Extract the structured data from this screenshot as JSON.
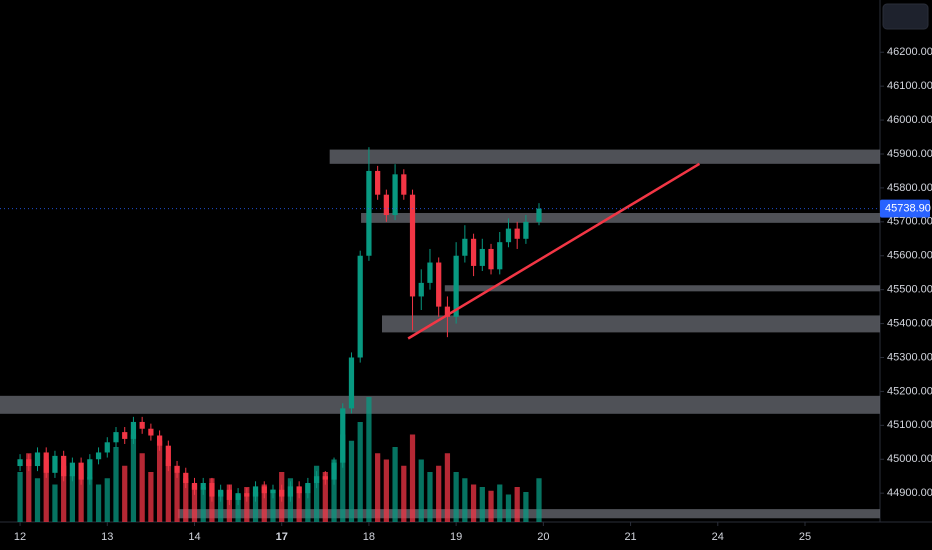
{
  "chart_data": {
    "type": "candlestick",
    "x": [
      0.0,
      0.1,
      0.2,
      0.3,
      0.4,
      0.5,
      0.6,
      0.7,
      0.8,
      0.9,
      1.0,
      1.1,
      1.2,
      1.3,
      1.4,
      1.5,
      1.6,
      1.7,
      1.8,
      1.9,
      2.0,
      2.1,
      2.2,
      2.3,
      2.4,
      2.5,
      2.6,
      2.7,
      2.8,
      2.9,
      3.0,
      3.1,
      3.2,
      3.3,
      3.4,
      3.5,
      3.6,
      3.7,
      3.8,
      3.9,
      4.0,
      4.1,
      4.2,
      4.3,
      4.4,
      4.5,
      4.6,
      4.7,
      4.8,
      4.9,
      5.0,
      5.1,
      5.2,
      5.3,
      5.4,
      5.5,
      5.6,
      5.7,
      5.8,
      5.95
    ],
    "open": [
      44980,
      45000,
      44980,
      45020,
      44960,
      45010,
      44950,
      44990,
      44940,
      45000,
      45020,
      45050,
      45080,
      45060,
      45110,
      45090,
      45070,
      45040,
      44980,
      44960,
      44930,
      44910,
      44930,
      44890,
      44910,
      44880,
      44900,
      44890,
      44920,
      44900,
      44910,
      44890,
      44920,
      44900,
      44930,
      44950,
      44940,
      44990,
      45150,
      45300,
      45600,
      45850,
      45780,
      45720,
      45840,
      45780,
      45480,
      45520,
      45580,
      45450,
      45420,
      45600,
      45650,
      45570,
      45620,
      45560,
      45640,
      45680,
      45650,
      45700
    ],
    "high": [
      45015,
      45015,
      45035,
      45035,
      45025,
      45025,
      45005,
      45005,
      45015,
      45035,
      45065,
      45095,
      45095,
      45125,
      45125,
      45105,
      45085,
      45055,
      44995,
      44975,
      44945,
      44945,
      44945,
      44925,
      44925,
      44915,
      44915,
      44935,
      44935,
      44925,
      44925,
      44935,
      44935,
      44945,
      44965,
      44965,
      45005,
      45165,
      45315,
      45615,
      45920,
      45865,
      45795,
      45870,
      45855,
      45795,
      45560,
      45620,
      45595,
      45480,
      45640,
      45690,
      45665,
      45650,
      45635,
      45670,
      45710,
      45700,
      45720,
      45755
    ],
    "low": [
      44965,
      44965,
      44965,
      44945,
      44945,
      44935,
      44935,
      44925,
      44925,
      44985,
      45005,
      45035,
      45045,
      45045,
      45075,
      45055,
      45025,
      44965,
      44945,
      44915,
      44895,
      44895,
      44875,
      44875,
      44865,
      44865,
      44875,
      44875,
      44885,
      44885,
      44875,
      44875,
      44885,
      44885,
      44915,
      44925,
      44925,
      44975,
      45135,
      45285,
      45585,
      45765,
      45700,
      45705,
      45765,
      45380,
      45440,
      45500,
      45420,
      45360,
      45400,
      45580,
      45540,
      45555,
      45545,
      45545,
      45625,
      45620,
      45635,
      45690
    ],
    "close": [
      45000,
      44980,
      45020,
      44960,
      45010,
      44950,
      44990,
      44940,
      45000,
      45020,
      45050,
      45080,
      45060,
      45110,
      45090,
      45070,
      45040,
      44980,
      44960,
      44930,
      44910,
      44930,
      44890,
      44910,
      44880,
      44900,
      44890,
      44920,
      44900,
      44910,
      44890,
      44920,
      44900,
      44930,
      44950,
      44940,
      44990,
      45150,
      45300,
      45600,
      45850,
      45780,
      45720,
      45840,
      45780,
      45480,
      45520,
      45580,
      45450,
      45420,
      45600,
      45650,
      45570,
      45620,
      45560,
      45640,
      45680,
      45650,
      45700,
      45738.9
    ],
    "volume": [
      40,
      55,
      35,
      50,
      30,
      45,
      38,
      42,
      36,
      30,
      35,
      60,
      45,
      70,
      55,
      40,
      65,
      50,
      45,
      35,
      30,
      28,
      35,
      25,
      30,
      22,
      28,
      24,
      30,
      26,
      40,
      35,
      28,
      30,
      45,
      40,
      50,
      70,
      65,
      80,
      100,
      55,
      50,
      60,
      45,
      70,
      50,
      40,
      45,
      55,
      40,
      35,
      30,
      28,
      25,
      30,
      22,
      28,
      24,
      35
    ],
    "up_color": "#089981",
    "down_color": "#f23645",
    "xlim": [
      -0.23,
      9.86
    ],
    "xticks": [
      {
        "value": 0,
        "label": "12"
      },
      {
        "value": 1,
        "label": "13"
      },
      {
        "value": 2,
        "label": "14"
      },
      {
        "value": 3,
        "label": "17"
      },
      {
        "value": 4,
        "label": "18"
      },
      {
        "value": 5,
        "label": "19"
      },
      {
        "value": 6,
        "label": "20"
      },
      {
        "value": 7,
        "label": "21"
      },
      {
        "value": 8,
        "label": "24"
      },
      {
        "value": 9,
        "label": "25"
      }
    ],
    "ylim": [
      44815,
      46354
    ],
    "yticks": [
      {
        "value": 44900,
        "label": "44900.00"
      },
      {
        "value": 45000,
        "label": "45000.00"
      },
      {
        "value": 45100,
        "label": "45100.00"
      },
      {
        "value": 45200,
        "label": "45200.00"
      },
      {
        "value": 45300,
        "label": "45300.00"
      },
      {
        "value": 45400,
        "label": "45400.00"
      },
      {
        "value": 45500,
        "label": "45500.00"
      },
      {
        "value": 45600,
        "label": "45600.00"
      },
      {
        "value": 45700,
        "label": "45700.00"
      },
      {
        "value": 45800,
        "label": "45800.00"
      },
      {
        "value": 45900,
        "label": "45900.00"
      },
      {
        "value": 46000,
        "label": "46000.00"
      },
      {
        "value": 46100,
        "label": "46100.00"
      },
      {
        "value": 46200,
        "label": "46200.00"
      }
    ],
    "last_price": {
      "value": 45738.9,
      "label": "45738.90"
    },
    "last_price_color": "#2962ff",
    "zones": [
      {
        "x_start": 3.55,
        "top": 45913,
        "bottom": 45871
      },
      {
        "x_start": 3.91,
        "top": 45726,
        "bottom": 45697
      },
      {
        "x_start": 4.87,
        "top": 45513,
        "bottom": 45495
      },
      {
        "x_start": 4.15,
        "top": 45424,
        "bottom": 45374
      },
      {
        "x_start": -0.23,
        "top": 45187,
        "bottom": 45134
      },
      {
        "x_start": 1.81,
        "top": 44853,
        "bottom": 44826
      }
    ],
    "zone_color": "#5d5f66",
    "trendline": {
      "x": [
        4.45,
        7.79
      ],
      "y": [
        45356,
        45871
      ],
      "color": "#f23645"
    }
  }
}
